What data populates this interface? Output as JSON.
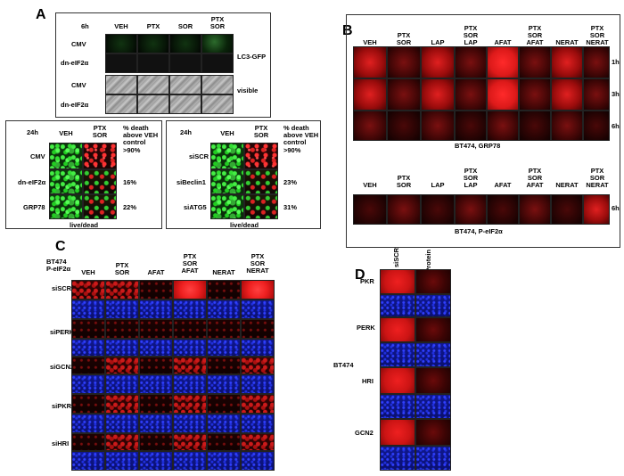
{
  "panelA": {
    "letter": "A",
    "time": "6h",
    "cols": [
      "VEH",
      "PTX",
      "SOR",
      "PTX\nSOR"
    ],
    "rows": [
      "CMV",
      "dn-eIF2α",
      "CMV",
      "dn-eIF2α"
    ],
    "side_labels": [
      "LC3-GFP",
      "visible"
    ],
    "sub1": {
      "time": "24h",
      "cols": [
        "VEH",
        "PTX\nSOR"
      ],
      "header": "% death\nabove VEH\ncontrol",
      "rows": [
        "CMV",
        "dn-eIF2α",
        "GRP78"
      ],
      "values": [
        ">90%",
        "16%",
        "22%"
      ],
      "footer": "live/dead"
    },
    "sub2": {
      "time": "24h",
      "cols": [
        "VEH",
        "PTX\nSOR"
      ],
      "header": "% death\nabove VEH\ncontrol",
      "rows": [
        "siSCR",
        "siBeclin1",
        "siATG5"
      ],
      "values": [
        ">90%",
        "23%",
        "31%"
      ],
      "footer": "live/dead"
    }
  },
  "panelB": {
    "letter": "B",
    "cols": [
      "VEH",
      "PTX\nSOR",
      "LAP",
      "PTX\nSOR\nLAP",
      "AFAT",
      "PTX\nSOR\nAFAT",
      "NERAT",
      "PTX\nSOR\nNERAT"
    ],
    "times": [
      "1h",
      "3h",
      "6h"
    ],
    "caption1": "BT474, GRP78",
    "time2": "6h",
    "caption2": "BT474, P-eIF2α"
  },
  "panelC": {
    "letter": "C",
    "cell_line": "BT474\nP-eIF2α",
    "cols": [
      "VEH",
      "PTX\nSOR",
      "AFAT",
      "PTX\nSOR\nAFAT",
      "NERAT",
      "PTX\nSOR\nNERAT"
    ],
    "rows": [
      "siSCR",
      "siPERK",
      "siGCN2",
      "siPKR",
      "siHRI"
    ]
  },
  "panelD": {
    "letter": "D",
    "cols": [
      "siSCR",
      "siProtein"
    ],
    "rows": [
      "PKR",
      "PERK",
      "HRI",
      "GCN2"
    ],
    "cell_line": "BT474"
  }
}
